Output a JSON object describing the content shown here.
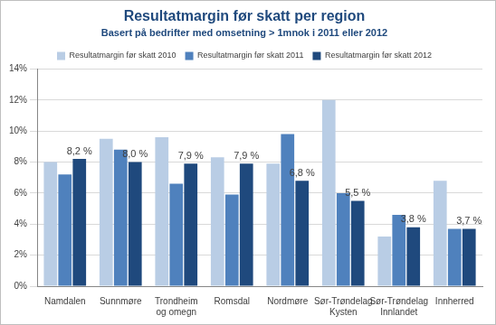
{
  "chart_data": {
    "type": "bar",
    "title": "Resultatmargin før skatt per region",
    "subtitle": "Basert på bedrifter med omsetning > 1mnok i 2011 eller 2012",
    "categories": [
      "Namdalen",
      "Sunnmøre",
      "Trondheim og omegn",
      "Romsdal",
      "Nordmøre",
      "Sør-Trøndelag Kysten",
      "Sør-Trøndelag Innlandet",
      "Innherred"
    ],
    "series": [
      {
        "name": "Resultatmargin før skatt 2010",
        "color": "#b9cde5",
        "values": [
          8.0,
          9.5,
          9.6,
          8.3,
          7.9,
          12.0,
          3.2,
          6.8
        ]
      },
      {
        "name": "Resultatmargin før skatt 2011",
        "color": "#4f81bd",
        "values": [
          7.2,
          8.8,
          6.6,
          5.9,
          9.8,
          6.0,
          4.6,
          3.7
        ]
      },
      {
        "name": "Resultatmargin før skatt 2012",
        "color": "#1f497d",
        "values": [
          8.2,
          8.0,
          7.9,
          7.9,
          6.8,
          5.5,
          3.8,
          3.7
        ],
        "data_labels": true,
        "value_labels": [
          "8,2 %",
          "8,0 %",
          "7,9 %",
          "7,9 %",
          "6,8 %",
          "5,5 %",
          "3,8 %",
          "3,7 %"
        ]
      }
    ],
    "ylim": [
      0,
      14
    ],
    "yticks": [
      {
        "value": 0,
        "label": "0%"
      },
      {
        "value": 2,
        "label": "2%"
      },
      {
        "value": 4,
        "label": "4%"
      },
      {
        "value": 6,
        "label": "6%"
      },
      {
        "value": 8,
        "label": "8%"
      },
      {
        "value": 10,
        "label": "10%"
      },
      {
        "value": 12,
        "label": "12%"
      },
      {
        "value": 14,
        "label": "14%"
      }
    ],
    "grid": true,
    "legend": "top"
  }
}
